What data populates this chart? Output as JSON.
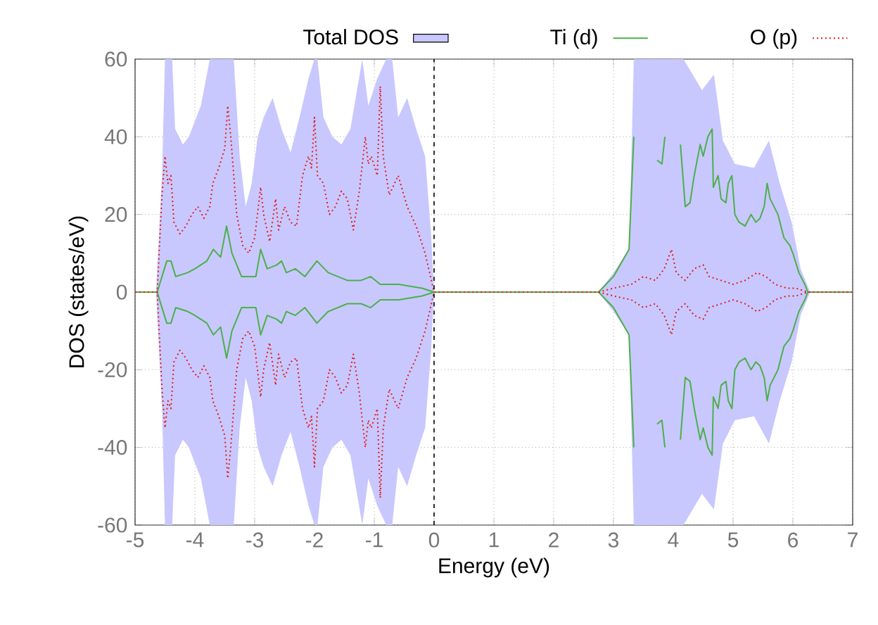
{
  "chart_data": {
    "type": "line",
    "xlabel": "Energy (eV)",
    "ylabel": "DOS (states/eV)",
    "xlim": [
      -5,
      7
    ],
    "ylim": [
      -60,
      60
    ],
    "xticks": [
      -5,
      -4,
      -3,
      -2,
      -1,
      0,
      1,
      2,
      3,
      4,
      5,
      6,
      7
    ],
    "yticks": [
      -60,
      -40,
      -20,
      0,
      20,
      40,
      60
    ],
    "grid": true,
    "legend": "top",
    "ref_lines": [
      {
        "axis": "x",
        "value": 0,
        "color": "#000000",
        "line_style": "dashed"
      }
    ],
    "series": [
      {
        "name": "Total DOS",
        "type": "area",
        "color": "#c8c8ff",
        "x": [
          -5,
          -4.65,
          -4.55,
          -4.5,
          -4.38,
          -4.33,
          -4.2,
          -4.1,
          -4.0,
          -3.9,
          -3.75,
          -3.35,
          -3.25,
          -3.15,
          -3.05,
          -2.95,
          -2.85,
          -2.7,
          -2.55,
          -2.4,
          -2.25,
          -2.1,
          -2.0,
          -1.95,
          -1.85,
          -1.7,
          -1.55,
          -1.4,
          -1.2,
          -1.1,
          -0.95,
          -0.8,
          -0.7,
          -0.6,
          -0.45,
          -0.3,
          -0.15,
          -0.05,
          0,
          2.75,
          3.0,
          3.26,
          3.34,
          4.17,
          4.48,
          4.68,
          4.83,
          5.03,
          5.35,
          5.6,
          5.78,
          5.98,
          6.13,
          6.29,
          7
        ],
        "values": [
          0,
          0,
          30,
          60,
          60,
          42,
          38,
          40,
          44,
          48,
          60,
          60,
          35,
          22,
          28,
          40,
          45,
          50,
          42,
          36,
          45,
          55,
          60,
          60,
          45,
          40,
          38,
          42,
          60,
          48,
          55,
          60,
          60,
          45,
          50,
          42,
          35,
          15,
          0,
          0,
          5,
          11,
          60,
          60,
          52,
          56,
          39,
          33,
          32,
          39,
          28,
          18,
          6,
          0,
          0
        ]
      },
      {
        "type": "area",
        "color": "#c8c8ff",
        "x": [
          -5,
          -4.65,
          -4.55,
          -4.5,
          -4.38,
          -4.33,
          -4.2,
          -4.1,
          -4.0,
          -3.9,
          -3.75,
          -3.35,
          -3.25,
          -3.15,
          -3.05,
          -2.95,
          -2.85,
          -2.7,
          -2.55,
          -2.4,
          -2.25,
          -2.1,
          -2.0,
          -1.95,
          -1.85,
          -1.7,
          -1.55,
          -1.4,
          -1.2,
          -1.1,
          -0.95,
          -0.8,
          -0.7,
          -0.6,
          -0.45,
          -0.3,
          -0.15,
          -0.05,
          0,
          2.75,
          3.0,
          3.26,
          3.34,
          4.17,
          4.48,
          4.68,
          4.83,
          5.03,
          5.35,
          5.6,
          5.78,
          5.98,
          6.13,
          6.29,
          7
        ],
        "values": [
          0,
          0,
          -30,
          -60,
          -60,
          -42,
          -38,
          -40,
          -44,
          -48,
          -60,
          -60,
          -35,
          -22,
          -28,
          -40,
          -45,
          -50,
          -42,
          -36,
          -45,
          -55,
          -60,
          -60,
          -45,
          -40,
          -38,
          -42,
          -60,
          -48,
          -55,
          -60,
          -60,
          -45,
          -50,
          -42,
          -35,
          -15,
          0,
          0,
          -5,
          -11,
          -60,
          -60,
          -52,
          -56,
          -39,
          -33,
          -32,
          -39,
          -28,
          -18,
          -6,
          0,
          0
        ]
      },
      {
        "name": "Ti (d)",
        "line_style": "solid",
        "color": "#4daf4a",
        "x": [
          -5,
          -4.63,
          -4.47,
          -4.4,
          -4.32,
          -4.12,
          -4.0,
          -3.8,
          -3.69,
          -3.57,
          -3.47,
          -3.38,
          -3.22,
          -2.98,
          -2.9,
          -2.79,
          -2.63,
          -2.55,
          -2.47,
          -2.32,
          -2.16,
          -1.96,
          -1.77,
          -1.45,
          -1.22,
          -1.06,
          -0.9,
          -0.59,
          -0.2,
          0,
          2.75,
          3.0,
          3.26,
          3.34,
          3.42,
          3.54,
          3.61,
          3.73,
          3.81,
          3.86,
          3.9,
          4.05,
          4.12,
          4.2,
          4.28,
          4.35,
          4.45,
          4.5,
          4.58,
          4.65,
          4.67,
          4.75,
          4.8,
          4.88,
          4.92,
          4.98,
          5.03,
          5.1,
          5.2,
          5.3,
          5.38,
          5.45,
          5.52,
          5.57,
          5.62,
          5.75,
          5.85,
          5.95,
          6.0,
          6.1,
          6.2,
          6.25,
          7
        ],
        "values": [
          0,
          0,
          8,
          8,
          4,
          5,
          6,
          8,
          11,
          9,
          17,
          10,
          4,
          4,
          11,
          6,
          7,
          8,
          5,
          6,
          4,
          8,
          5,
          3,
          3,
          4,
          2,
          2,
          1,
          0,
          0,
          4,
          11,
          40,
          null,
          null,
          null,
          34,
          33,
          40,
          null,
          null,
          38,
          22,
          23,
          30,
          38,
          35,
          40,
          42,
          27,
          30,
          24,
          23,
          28,
          30,
          20,
          18,
          17,
          20,
          18,
          19,
          22,
          28,
          24,
          20,
          14,
          12,
          10,
          5,
          2,
          0,
          0
        ]
      },
      {
        "line_style": "solid",
        "color": "#4daf4a",
        "x": [
          -5,
          -4.63,
          -4.47,
          -4.4,
          -4.32,
          -4.12,
          -4.0,
          -3.8,
          -3.69,
          -3.57,
          -3.47,
          -3.38,
          -3.22,
          -2.98,
          -2.9,
          -2.79,
          -2.63,
          -2.55,
          -2.47,
          -2.32,
          -2.16,
          -1.96,
          -1.77,
          -1.45,
          -1.22,
          -1.06,
          -0.9,
          -0.59,
          -0.2,
          0,
          2.75,
          3.0,
          3.26,
          3.34,
          3.42,
          3.54,
          3.61,
          3.73,
          3.81,
          3.86,
          3.9,
          4.05,
          4.12,
          4.2,
          4.28,
          4.35,
          4.45,
          4.5,
          4.58,
          4.65,
          4.67,
          4.75,
          4.8,
          4.88,
          4.92,
          4.98,
          5.03,
          5.1,
          5.2,
          5.3,
          5.38,
          5.45,
          5.52,
          5.57,
          5.62,
          5.75,
          5.85,
          5.95,
          6.0,
          6.1,
          6.2,
          6.25,
          7
        ],
        "values": [
          0,
          0,
          -8,
          -8,
          -4,
          -5,
          -6,
          -8,
          -11,
          -9,
          -17,
          -10,
          -4,
          -4,
          -11,
          -6,
          -7,
          -8,
          -5,
          -6,
          -4,
          -8,
          -5,
          -3,
          -3,
          -4,
          -2,
          -2,
          -1,
          0,
          0,
          -4,
          -11,
          -40,
          null,
          null,
          null,
          -34,
          -33,
          -40,
          null,
          null,
          -38,
          -22,
          -23,
          -30,
          -38,
          -35,
          -40,
          -42,
          -27,
          -30,
          -24,
          -23,
          -28,
          -30,
          -20,
          -18,
          -17,
          -20,
          -18,
          -19,
          -22,
          -28,
          -24,
          -20,
          -14,
          -12,
          -10,
          -5,
          -2,
          0,
          0
        ]
      },
      {
        "name": "O (p)",
        "line_style": "dotted",
        "color": "#e41a1c",
        "x": [
          -5,
          -4.63,
          -4.55,
          -4.5,
          -4.45,
          -4.4,
          -4.35,
          -4.25,
          -4.15,
          -4.05,
          -3.95,
          -3.85,
          -3.75,
          -3.7,
          -3.6,
          -3.5,
          -3.45,
          -3.4,
          -3.3,
          -3.2,
          -3.1,
          -3.0,
          -2.9,
          -2.85,
          -2.75,
          -2.65,
          -2.6,
          -2.5,
          -2.4,
          -2.3,
          -2.2,
          -2.1,
          -2.05,
          -2.0,
          -1.95,
          -1.85,
          -1.75,
          -1.65,
          -1.55,
          -1.45,
          -1.35,
          -1.25,
          -1.15,
          -1.1,
          -1.05,
          -0.95,
          -0.9,
          -0.85,
          -0.75,
          -0.6,
          -0.45,
          -0.3,
          -0.15,
          0,
          2.75,
          3.0,
          3.3,
          3.5,
          3.7,
          3.85,
          3.97,
          4.05,
          4.2,
          4.35,
          4.5,
          4.6,
          4.8,
          5.0,
          5.2,
          5.4,
          5.55,
          5.7,
          5.9,
          6.05,
          6.25,
          7
        ],
        "values": [
          0,
          0,
          25,
          35,
          28,
          30,
          18,
          15,
          17,
          20,
          22,
          19,
          22,
          28,
          32,
          37,
          48,
          40,
          20,
          12,
          10,
          14,
          27,
          20,
          13,
          24,
          16,
          22,
          18,
          17,
          30,
          35,
          32,
          45,
          30,
          28,
          20,
          22,
          26,
          24,
          16,
          26,
          40,
          33,
          35,
          30,
          53,
          35,
          25,
          30,
          22,
          17,
          10,
          0,
          0,
          1,
          2,
          4,
          3,
          6,
          11,
          5,
          3,
          6,
          7,
          4,
          3,
          2,
          3,
          5,
          4,
          2,
          1,
          1,
          0,
          0
        ]
      },
      {
        "line_style": "dotted",
        "color": "#e41a1c",
        "x": [
          -5,
          -4.63,
          -4.55,
          -4.5,
          -4.45,
          -4.4,
          -4.35,
          -4.25,
          -4.15,
          -4.05,
          -3.95,
          -3.85,
          -3.75,
          -3.7,
          -3.6,
          -3.5,
          -3.45,
          -3.4,
          -3.3,
          -3.2,
          -3.1,
          -3.0,
          -2.9,
          -2.85,
          -2.75,
          -2.65,
          -2.6,
          -2.5,
          -2.4,
          -2.3,
          -2.2,
          -2.1,
          -2.05,
          -2.0,
          -1.95,
          -1.85,
          -1.75,
          -1.65,
          -1.55,
          -1.45,
          -1.35,
          -1.25,
          -1.15,
          -1.1,
          -1.05,
          -0.95,
          -0.9,
          -0.85,
          -0.75,
          -0.6,
          -0.45,
          -0.3,
          -0.15,
          0,
          2.75,
          3.0,
          3.3,
          3.5,
          3.7,
          3.85,
          3.97,
          4.05,
          4.2,
          4.35,
          4.5,
          4.6,
          4.8,
          5.0,
          5.2,
          5.4,
          5.55,
          5.7,
          5.9,
          6.05,
          6.25,
          7
        ],
        "values": [
          0,
          0,
          -25,
          -35,
          -28,
          -30,
          -18,
          -15,
          -17,
          -20,
          -22,
          -19,
          -22,
          -28,
          -32,
          -37,
          -48,
          -40,
          -20,
          -12,
          -10,
          -14,
          -27,
          -20,
          -13,
          -24,
          -16,
          -22,
          -18,
          -17,
          -30,
          -35,
          -32,
          -45,
          -30,
          -28,
          -20,
          -22,
          -26,
          -24,
          -16,
          -26,
          -40,
          -33,
          -35,
          -30,
          -53,
          -35,
          -25,
          -30,
          -22,
          -17,
          -10,
          0,
          0,
          -1,
          -2,
          -4,
          -3,
          -6,
          -11,
          -5,
          -3,
          -6,
          -7,
          -4,
          -3,
          -2,
          -3,
          -5,
          -4,
          -2,
          -1,
          -1,
          0,
          0
        ]
      }
    ]
  }
}
